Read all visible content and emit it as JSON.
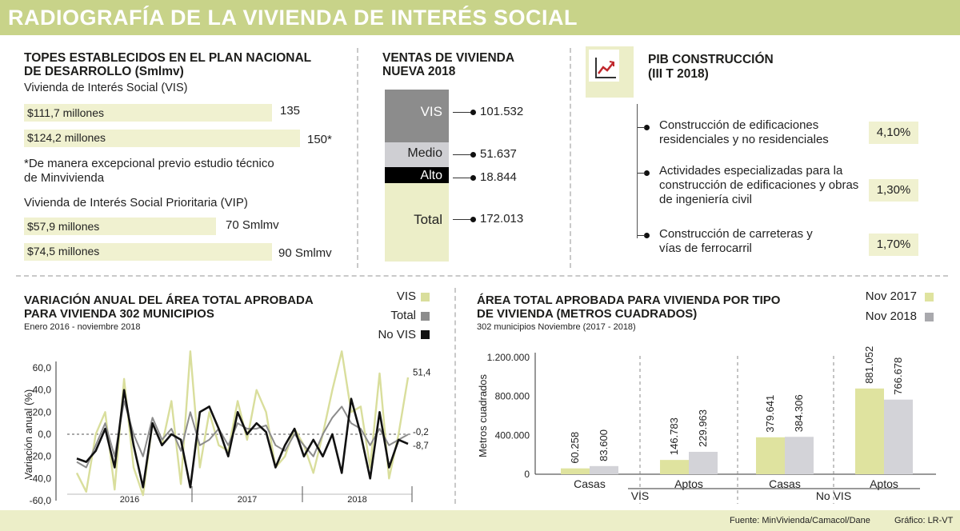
{
  "title": "RADIOGRAFÍA DE LA VIVIENDA DE INTERÉS SOCIAL",
  "topes": {
    "heading": "TOPES ESTABLECIDOS EN EL PLAN NACIONAL DE DESARROLLO (Smlmv)",
    "vis_label": "Vivienda de Interés Social (VIS)",
    "vis_rows": [
      {
        "amount": "$111,7 millones",
        "value": "135"
      },
      {
        "amount": "$124,2 millones",
        "value": "150*"
      }
    ],
    "note": "*De manera excepcional previo estudio técnico de Minvivienda",
    "vip_label": "Vivienda de Interés Social Prioritaria (VIP)",
    "vip_rows": [
      {
        "amount": "$57,9 millones",
        "value": "70 Smlmv"
      },
      {
        "amount": "$74,5 millones",
        "value": "90 Smlmv"
      }
    ]
  },
  "ventas": {
    "heading": "VENTAS DE VIVIENDA NUEVA 2018",
    "segments": [
      {
        "label": "VIS",
        "value": "101.532",
        "color": "#8c8c8c"
      },
      {
        "label": "Medio",
        "value": "51.637",
        "color": "#cfcfd3"
      },
      {
        "label": "Alto",
        "value": "18.844",
        "color": "#000000"
      },
      {
        "label": "Total",
        "value": "172.013",
        "color": "#eceec8"
      }
    ]
  },
  "pib": {
    "heading": "PIB CONSTRUCCIÓN",
    "subheading": "(III T 2018)",
    "icon": "growth-chart-icon",
    "items": [
      {
        "text": "Construcción de edificaciones residenciales y no residenciales",
        "pct": "4,10%"
      },
      {
        "text": "Actividades especializadas para la construcción de edificaciones y obras de ingeniería civil",
        "pct": "1,30%"
      },
      {
        "text": "Construcción de carreteras y vías de ferrocarril",
        "pct": "1,70%"
      }
    ]
  },
  "chart_data": [
    {
      "type": "line",
      "title": "VARIACIÓN ANUAL DEL ÁREA TOTAL APROBADA PARA VIVIENDA 302 MUNICIPIOS",
      "subtitle": "Enero 2016 - noviembre 2018",
      "ylabel": "Variación anual (%)",
      "ylim": [
        -60,
        60
      ],
      "yticks": [
        "60,0",
        "40,0",
        "20,0",
        "0,0",
        "-20,0",
        "-40,0",
        "-60,0"
      ],
      "ytick_values": [
        60,
        40,
        20,
        0,
        -20,
        -40,
        -60
      ],
      "year_labels": [
        "2016",
        "2017",
        "2018"
      ],
      "end_labels": [
        "51,4",
        "-0,2",
        "-8,7"
      ],
      "legend": [
        {
          "name": "VIS",
          "color": "#d9de9c"
        },
        {
          "name": "Total",
          "color": "#8c8c8c"
        },
        {
          "name": "No VIS",
          "color": "#111111"
        }
      ],
      "series": [
        {
          "name": "VIS",
          "color": "#d9de9c",
          "values": [
            -35,
            -52,
            0,
            20,
            -50,
            50,
            -30,
            -55,
            10,
            -10,
            30,
            -45,
            75,
            -30,
            20,
            -10,
            -15,
            30,
            -5,
            40,
            20,
            -30,
            -20,
            5,
            -10,
            -35,
            0,
            40,
            75,
            20,
            25,
            -30,
            55,
            -40,
            0,
            51.4
          ]
        },
        {
          "name": "Total",
          "color": "#8c8c8c",
          "values": [
            -25,
            -30,
            -10,
            10,
            -20,
            30,
            0,
            -20,
            15,
            -5,
            5,
            -15,
            20,
            -10,
            -5,
            5,
            -10,
            10,
            5,
            5,
            8,
            -10,
            -15,
            0,
            -10,
            -20,
            0,
            15,
            25,
            10,
            5,
            -10,
            5,
            -10,
            -5,
            -0.2
          ]
        },
        {
          "name": "No VIS",
          "color": "#111111",
          "values": [
            -22,
            -25,
            -15,
            5,
            -30,
            40,
            -10,
            -48,
            10,
            -10,
            0,
            -5,
            -48,
            20,
            25,
            5,
            -20,
            20,
            0,
            10,
            2,
            -30,
            -10,
            5,
            -20,
            -5,
            -20,
            0,
            -35,
            32,
            0,
            -40,
            20,
            -30,
            -5,
            -8.7
          ]
        }
      ]
    },
    {
      "type": "bar",
      "title": "ÁREA TOTAL APROBADA PARA VIVIENDA POR TIPO DE VIVIENDA (METROS CUADRADOS)",
      "subtitle": "302 municipios Noviembre (2017 - 2018)",
      "ylabel": "Metros cuadrados",
      "ylim": [
        0,
        1200000
      ],
      "yticks": [
        "1.200.000",
        "800.000",
        "400.000",
        "0"
      ],
      "ytick_values": [
        1200000,
        800000,
        400000,
        0
      ],
      "categories": [
        "Casas",
        "Aptos",
        "Casas",
        "Aptos"
      ],
      "groups": [
        "VIS",
        "No VIS"
      ],
      "legend": [
        {
          "name": "Nov 2017",
          "color": "#dfe39f"
        },
        {
          "name": "Nov 2018",
          "color": "#a9a9ad"
        }
      ],
      "series": [
        {
          "name": "Nov 2017",
          "color": "#dfe39f",
          "values": [
            60258,
            146783,
            379641,
            881052
          ],
          "labels": [
            "60.258",
            "146.783",
            "379.641",
            "881.052"
          ]
        },
        {
          "name": "Nov 2018",
          "color": "#d3d3d8",
          "values": [
            83600,
            229963,
            384306,
            766678
          ],
          "labels": [
            "83.600",
            "229.963",
            "384.306",
            "766.678"
          ]
        }
      ]
    }
  ],
  "footer": {
    "source": "Fuente: MinVivienda/Camacol/Dane",
    "credit": "Gráfico: LR-VT"
  }
}
